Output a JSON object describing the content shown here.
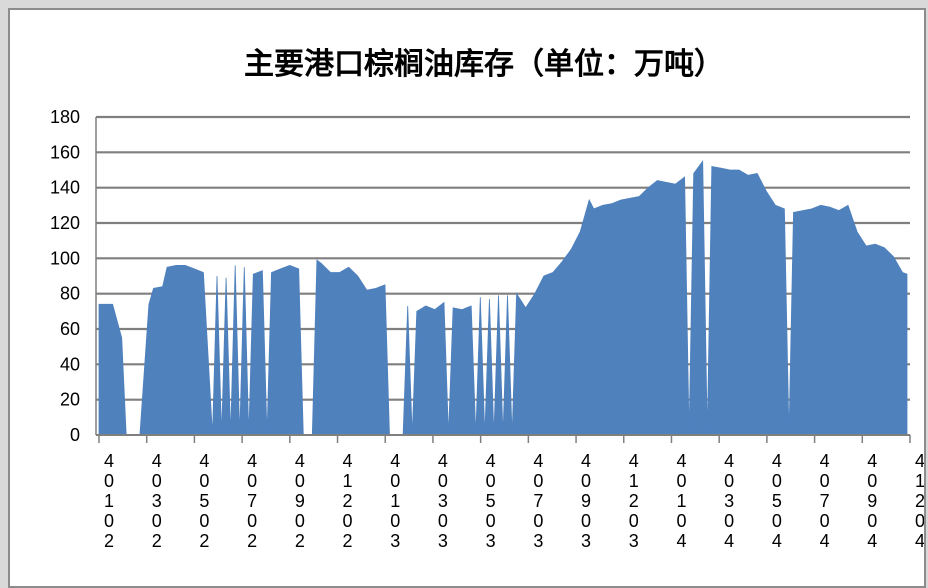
{
  "chart_data": {
    "type": "area",
    "title": "主要港口棕榈油库存（单位：万吨）",
    "xlabel": "",
    "ylabel": "",
    "ylim": [
      0,
      180
    ],
    "yticks": [
      0,
      20,
      40,
      60,
      80,
      100,
      120,
      140,
      160,
      180
    ],
    "grid": true,
    "legend": "none",
    "color": "#4f81bd",
    "x_tick_labels": [
      "40102",
      "40302",
      "40502",
      "40702",
      "40902",
      "41202",
      "40103",
      "40303",
      "40503",
      "40703",
      "40903",
      "41203",
      "40104",
      "40304",
      "40504",
      "40704",
      "40904",
      "41204"
    ],
    "x_index_range": [
      0,
      178
    ],
    "y_profile": [
      [
        0,
        74
      ],
      [
        3,
        74
      ],
      [
        5,
        55
      ],
      [
        6,
        0
      ],
      [
        8,
        0
      ],
      [
        9,
        0
      ],
      [
        11,
        74
      ],
      [
        12,
        83
      ],
      [
        14,
        84
      ],
      [
        15,
        95
      ],
      [
        17,
        96
      ],
      [
        19,
        96
      ],
      [
        21,
        94
      ],
      [
        23,
        92
      ],
      [
        25,
        0
      ],
      [
        26,
        90
      ],
      [
        27,
        0
      ],
      [
        28,
        89
      ],
      [
        29,
        0
      ],
      [
        30,
        96
      ],
      [
        31,
        0
      ],
      [
        32,
        95
      ],
      [
        33,
        0
      ],
      [
        34,
        91
      ],
      [
        36,
        93
      ],
      [
        37,
        0
      ],
      [
        38,
        92
      ],
      [
        40,
        94
      ],
      [
        42,
        96
      ],
      [
        44,
        94
      ],
      [
        45,
        0
      ],
      [
        46,
        0
      ],
      [
        47,
        0
      ],
      [
        48,
        99
      ],
      [
        49,
        97
      ],
      [
        51,
        92
      ],
      [
        53,
        92
      ],
      [
        55,
        95
      ],
      [
        57,
        90
      ],
      [
        59,
        82
      ],
      [
        61,
        83
      ],
      [
        63,
        85
      ],
      [
        64,
        0
      ],
      [
        65,
        0
      ],
      [
        66,
        0
      ],
      [
        67,
        0
      ],
      [
        68,
        73
      ],
      [
        69,
        0
      ],
      [
        70,
        70
      ],
      [
        72,
        73
      ],
      [
        74,
        71
      ],
      [
        76,
        75
      ],
      [
        77,
        0
      ],
      [
        78,
        72
      ],
      [
        80,
        71
      ],
      [
        82,
        73
      ],
      [
        83,
        0
      ],
      [
        84,
        78
      ],
      [
        85,
        0
      ],
      [
        86,
        77
      ],
      [
        87,
        0
      ],
      [
        88,
        79
      ],
      [
        89,
        0
      ],
      [
        90,
        79
      ],
      [
        91,
        0
      ],
      [
        92,
        80
      ],
      [
        94,
        72
      ],
      [
        96,
        80
      ],
      [
        98,
        90
      ],
      [
        100,
        92
      ],
      [
        102,
        98
      ],
      [
        104,
        105
      ],
      [
        106,
        115
      ],
      [
        108,
        133
      ],
      [
        109,
        128
      ],
      [
        111,
        130
      ],
      [
        113,
        131
      ],
      [
        115,
        133
      ],
      [
        117,
        134
      ],
      [
        119,
        135
      ],
      [
        121,
        140
      ],
      [
        123,
        144
      ],
      [
        125,
        143
      ],
      [
        127,
        142
      ],
      [
        129,
        146
      ],
      [
        130,
        0
      ],
      [
        131,
        148
      ],
      [
        133,
        155
      ],
      [
        134,
        0
      ],
      [
        135,
        152
      ],
      [
        137,
        151
      ],
      [
        139,
        150
      ],
      [
        141,
        150
      ],
      [
        143,
        147
      ],
      [
        145,
        148
      ],
      [
        147,
        138
      ],
      [
        149,
        130
      ],
      [
        151,
        128
      ],
      [
        152,
        0
      ],
      [
        153,
        126
      ],
      [
        155,
        127
      ],
      [
        157,
        128
      ],
      [
        159,
        130
      ],
      [
        161,
        129
      ],
      [
        163,
        127
      ],
      [
        165,
        130
      ],
      [
        167,
        115
      ],
      [
        169,
        107
      ],
      [
        171,
        108
      ],
      [
        173,
        106
      ],
      [
        175,
        101
      ],
      [
        177,
        92
      ],
      [
        178,
        91
      ]
    ]
  }
}
